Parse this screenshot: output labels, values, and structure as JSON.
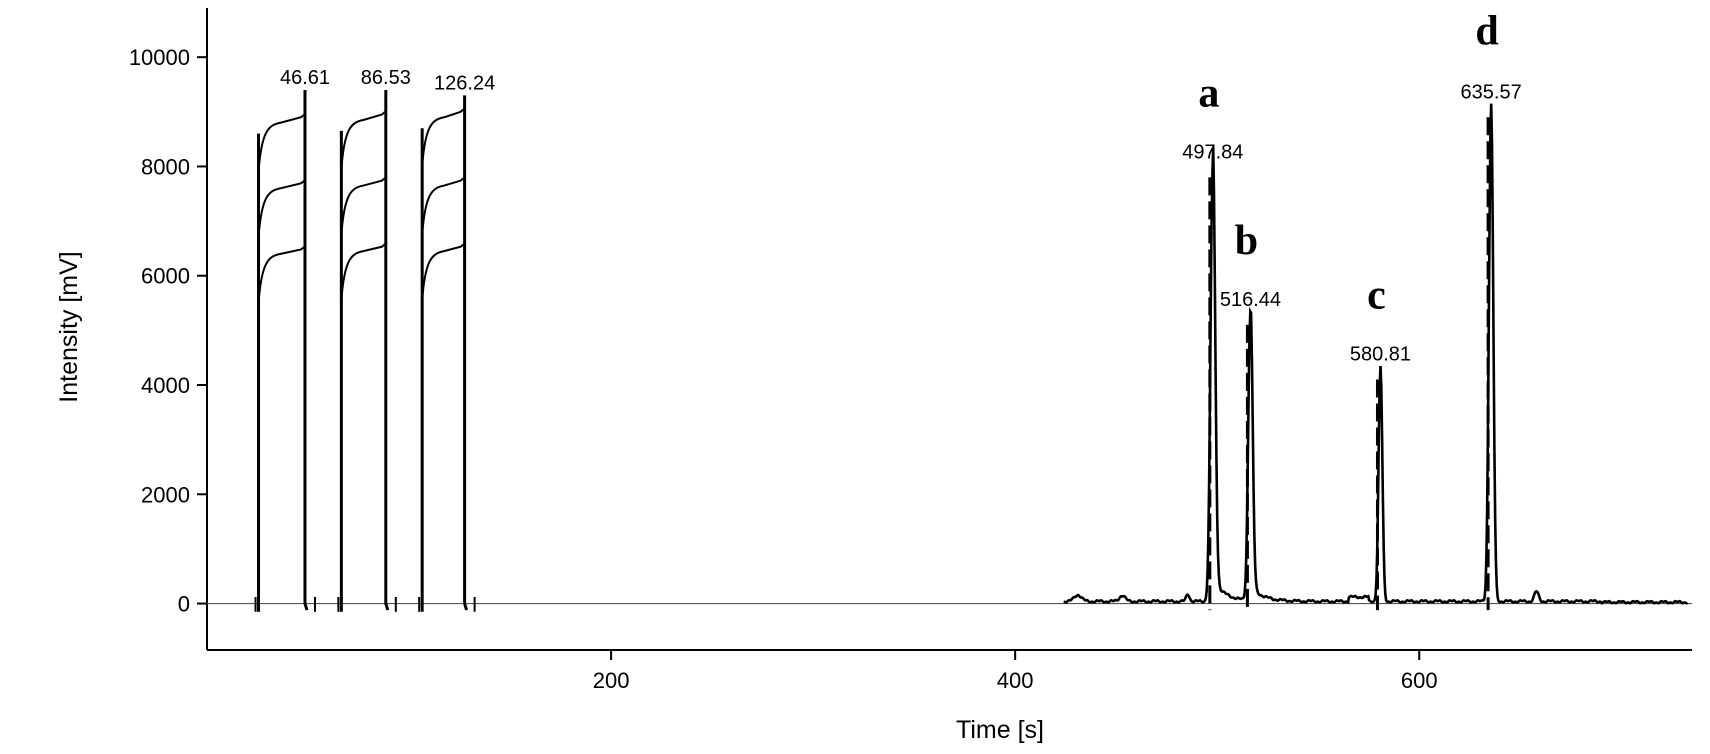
{
  "chart_data": {
    "type": "line",
    "title": "",
    "xlabel": "Time [s]",
    "ylabel": "Intensity [mV]",
    "xlim": [
      0,
      735
    ],
    "ylim": [
      -850,
      10900
    ],
    "xticks": [
      200,
      400,
      600
    ],
    "yticks": [
      0,
      2000,
      4000,
      6000,
      8000,
      10000
    ],
    "xtick_labels": [
      "200",
      "400",
      "600"
    ],
    "ytick_labels": [
      "0",
      "2000",
      "4000",
      "6000",
      "8000",
      "10000"
    ],
    "grid": false,
    "baseline": 0,
    "calibration_pulses": [
      {
        "label": "46.61",
        "start": 25.5,
        "end": 48.5,
        "levels": [
          6400,
          7600,
          8800,
          9400
        ]
      },
      {
        "label": "86.53",
        "start": 66.5,
        "end": 88.5,
        "levels": [
          6450,
          7650,
          8850,
          9400
        ]
      },
      {
        "label": "126.24",
        "start": 106.5,
        "end": 127.5,
        "levels": [
          6450,
          7650,
          8900,
          9300
        ]
      }
    ],
    "peaks": [
      {
        "letter": "a",
        "label": "497.84",
        "time": 497.84,
        "height": 8000
      },
      {
        "letter": "b",
        "label": "516.44",
        "time": 516.44,
        "height": 5300
      },
      {
        "letter": "c",
        "label": "580.81",
        "time": 580.81,
        "height": 4300
      },
      {
        "letter": "d",
        "label": "635.57",
        "time": 635.57,
        "height": 9100
      }
    ]
  }
}
